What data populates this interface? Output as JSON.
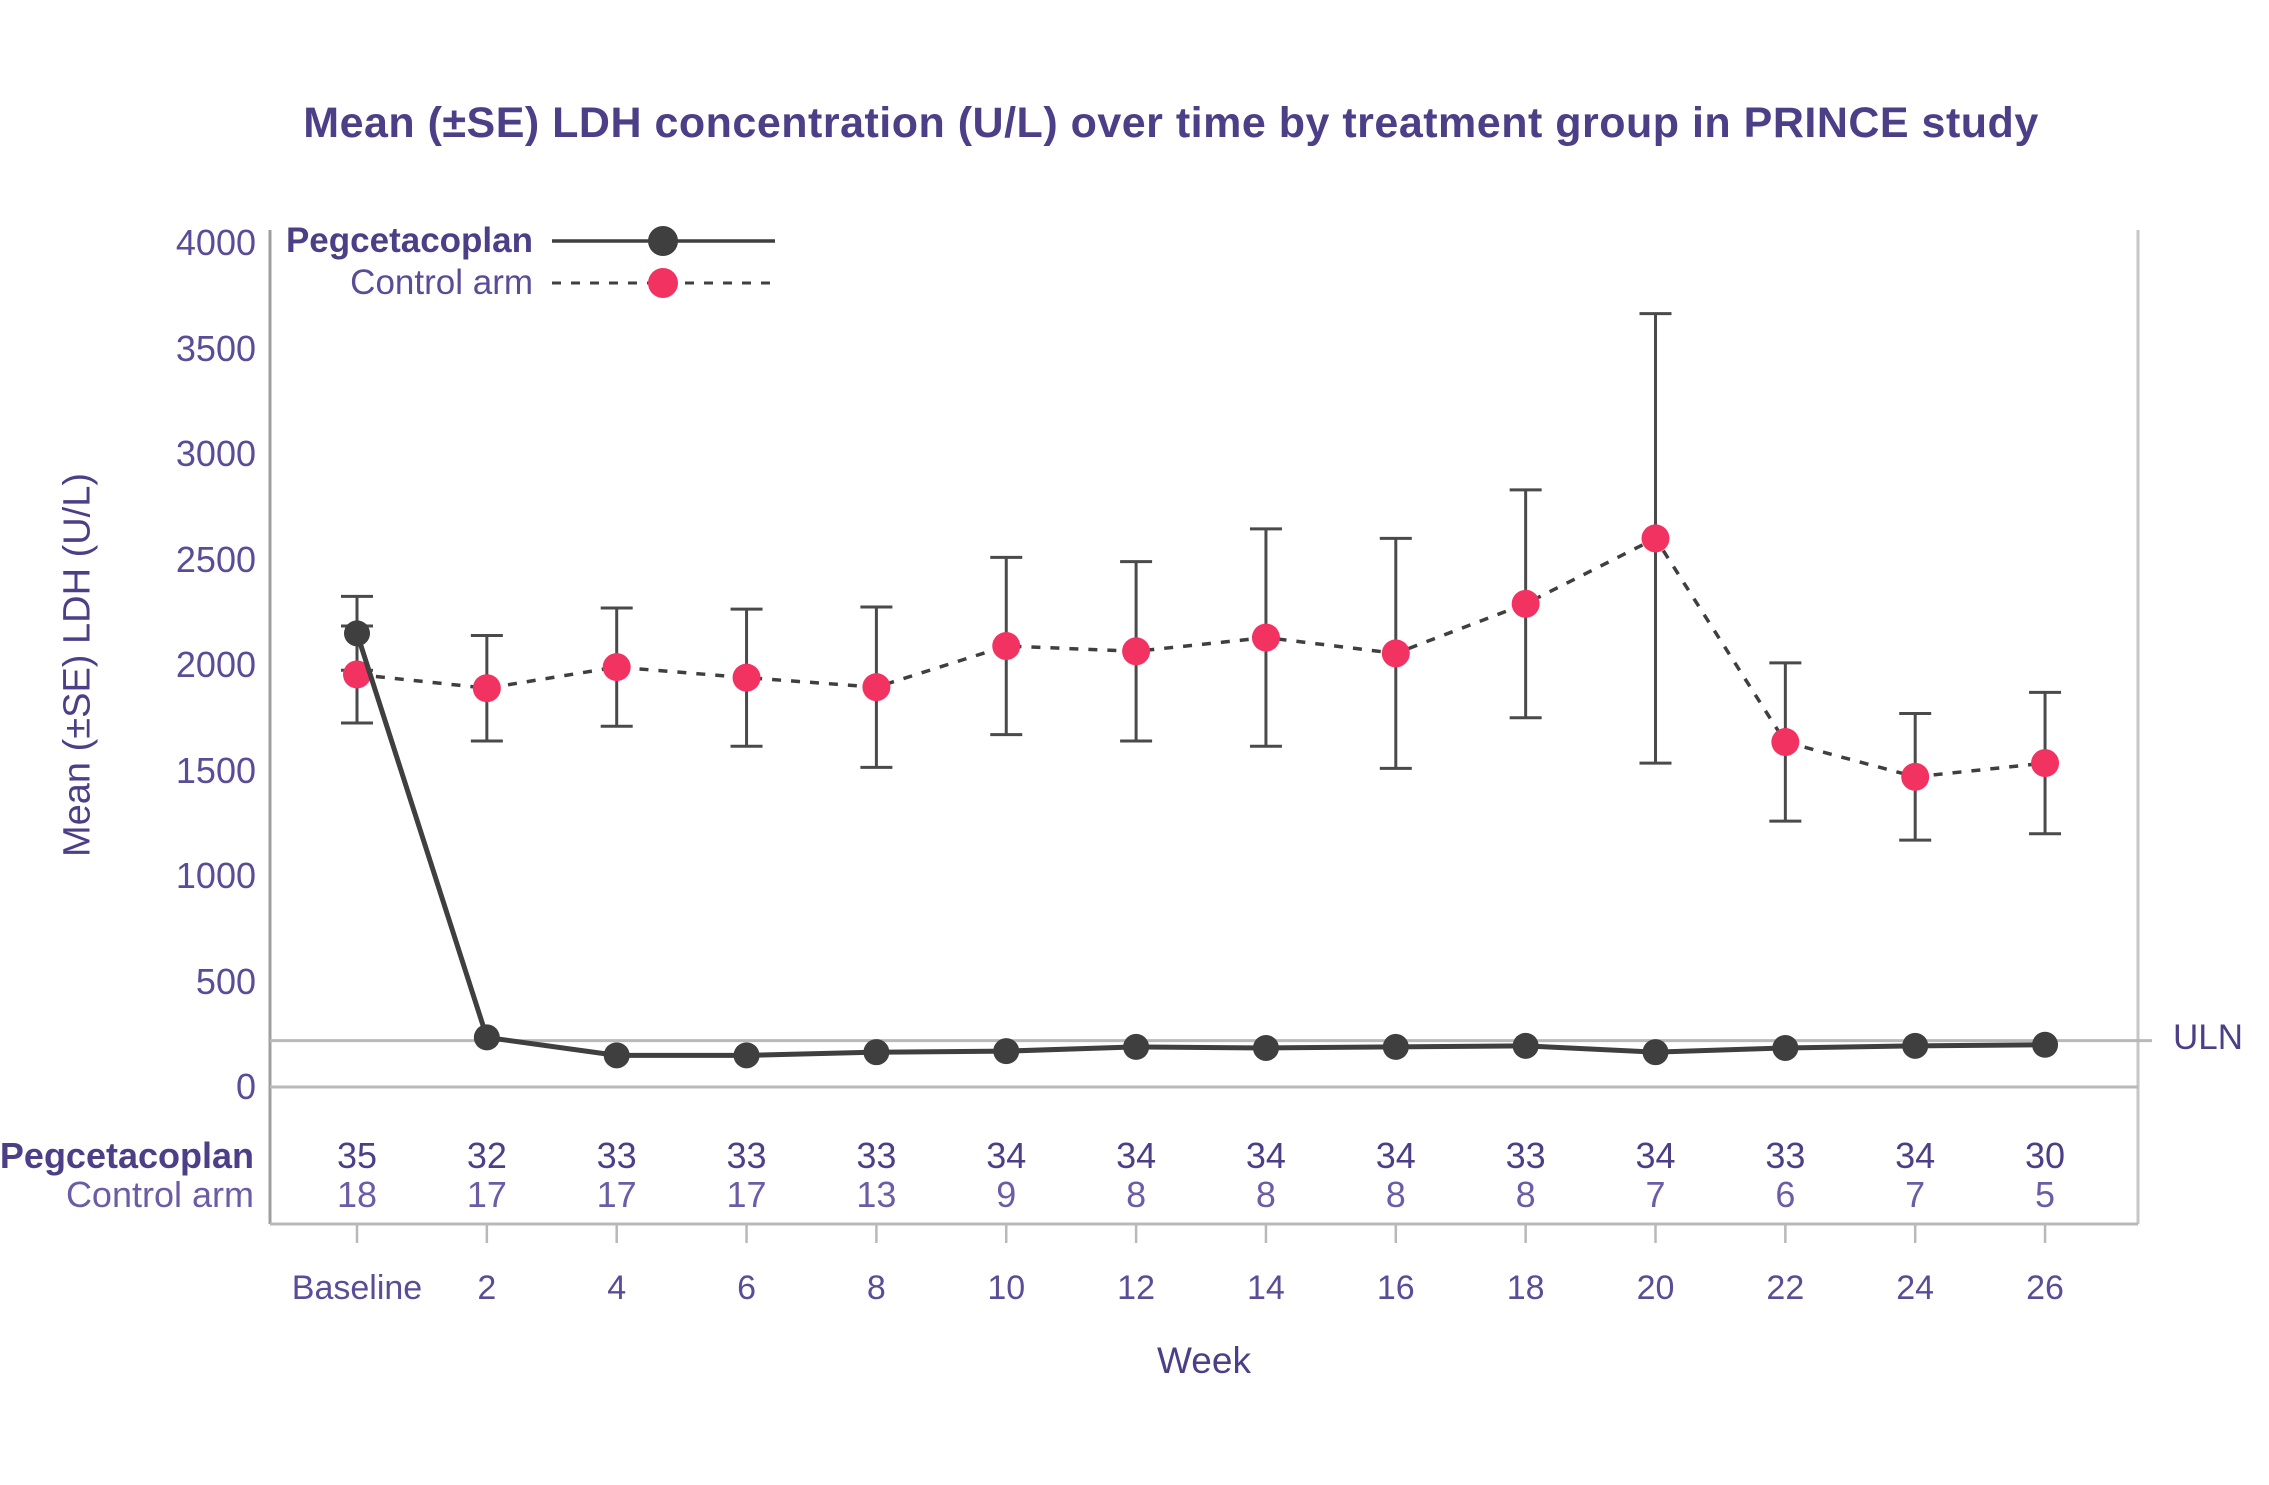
{
  "title": "Mean (±SE) LDH concentration (U/L) over time by treatment group in PRINCE study",
  "uln_label": "ULN",
  "legend": {
    "series1_label": "Pegcetacoplan",
    "series2_label": "Control arm"
  },
  "colors": {
    "title_purple": "#4D3F87",
    "tick_purple": "#5B4C97",
    "light_purple": "#6B5CA5",
    "pegcetacoplan": "#3F3F3F",
    "control_arm": "#F23362",
    "error_bar": "#4A4A4A",
    "axis_gray": "#9F9F9F",
    "grid_gray": "#B9B9B9",
    "right_border_gray": "#C6C6C6"
  },
  "chart_data": {
    "type": "line",
    "title": "Mean (±SE) LDH concentration (U/L) over time by treatment group in PRINCE study",
    "xlabel": "Week",
    "ylabel": "Mean (±SE) LDH (U/L)",
    "categories": [
      "Baseline",
      "2",
      "4",
      "6",
      "8",
      "10",
      "12",
      "14",
      "16",
      "18",
      "20",
      "22",
      "24",
      "26"
    ],
    "y_ticks": [
      0,
      500,
      1000,
      1500,
      2000,
      2500,
      3000,
      3500,
      4000
    ],
    "ylim": [
      0,
      4000
    ],
    "grid": false,
    "legend_position": "top-left",
    "uln_value": 220,
    "series": [
      {
        "name": "Pegcetacoplan",
        "line_style": "solid",
        "marker_color": "#3F3F3F",
        "values": [
          2150,
          235,
          150,
          150,
          165,
          170,
          190,
          185,
          190,
          195,
          165,
          185,
          195,
          200
        ],
        "se": [
          175,
          0,
          0,
          0,
          0,
          0,
          0,
          0,
          0,
          0,
          0,
          0,
          0,
          0
        ]
      },
      {
        "name": "Control arm",
        "line_style": "dashed",
        "marker_color": "#F23362",
        "values": [
          1955,
          1890,
          1990,
          1940,
          1895,
          2090,
          2065,
          2130,
          2055,
          2290,
          2600,
          1635,
          1470,
          1535
        ],
        "se": [
          230,
          250,
          280,
          325,
          380,
          420,
          425,
          515,
          545,
          540,
          1065,
          375,
          300,
          335
        ]
      }
    ],
    "patients_table": {
      "row_labels": [
        "Pegcetacoplan",
        "Control arm"
      ],
      "rows": [
        [
          35,
          32,
          33,
          33,
          33,
          34,
          34,
          34,
          34,
          33,
          34,
          33,
          34,
          30
        ],
        [
          18,
          17,
          17,
          17,
          13,
          9,
          8,
          8,
          8,
          8,
          7,
          6,
          7,
          5
        ]
      ]
    }
  }
}
